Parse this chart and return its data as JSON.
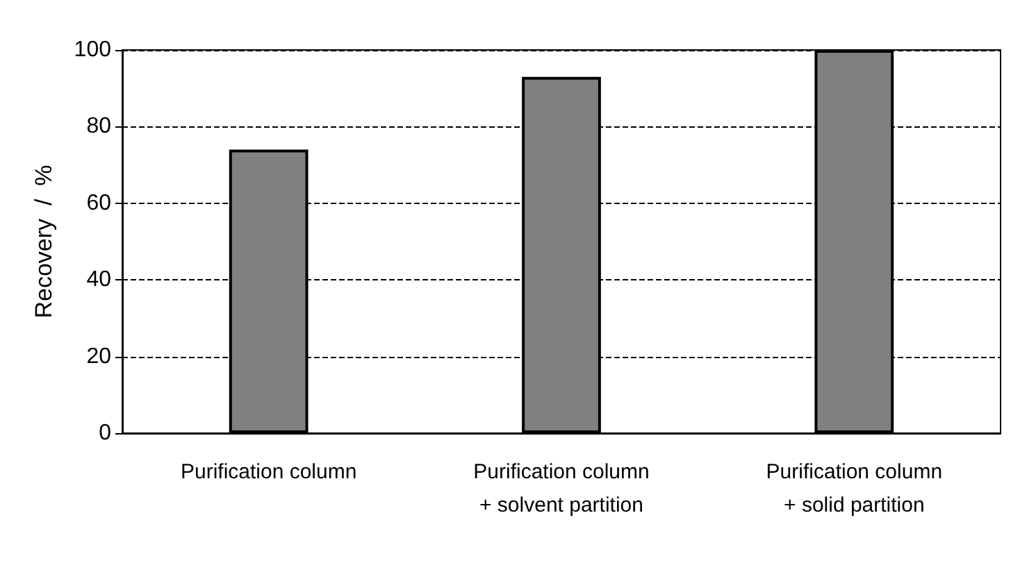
{
  "chart_data": {
    "type": "bar",
    "ylabel": "Recovery  /  %",
    "categories": [
      "Purification column",
      "Purification column\n+ solvent partition",
      "Purification column\n+ solid partition"
    ],
    "values": [
      74,
      93,
      100
    ],
    "color": "#808080",
    "ylim": [
      0,
      100
    ],
    "yticks": [
      0,
      20,
      40,
      60,
      80,
      100
    ],
    "grid": "y",
    "line_style": "dashed"
  }
}
